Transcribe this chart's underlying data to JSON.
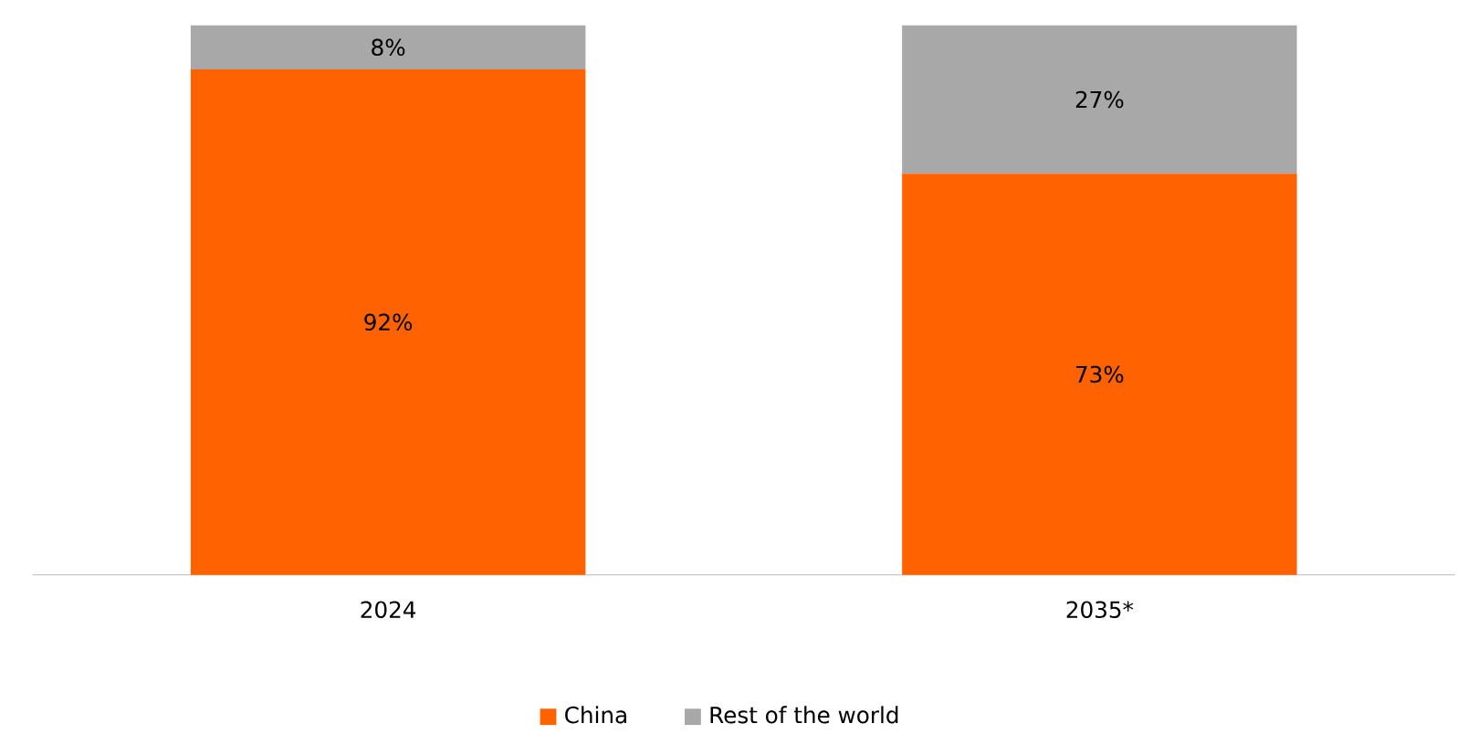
{
  "chart_data": {
    "type": "bar",
    "stacked": true,
    "categories": [
      "2024",
      "2035*"
    ],
    "series": [
      {
        "name": "China",
        "color": "#ff6200",
        "values": [
          92,
          73
        ],
        "value_labels": [
          "92%",
          "73%"
        ]
      },
      {
        "name": "Rest of the world",
        "color": "#a8a8a8",
        "values": [
          8,
          27
        ],
        "value_labels": [
          "8%",
          "27%"
        ]
      }
    ],
    "legend": "bottom"
  }
}
